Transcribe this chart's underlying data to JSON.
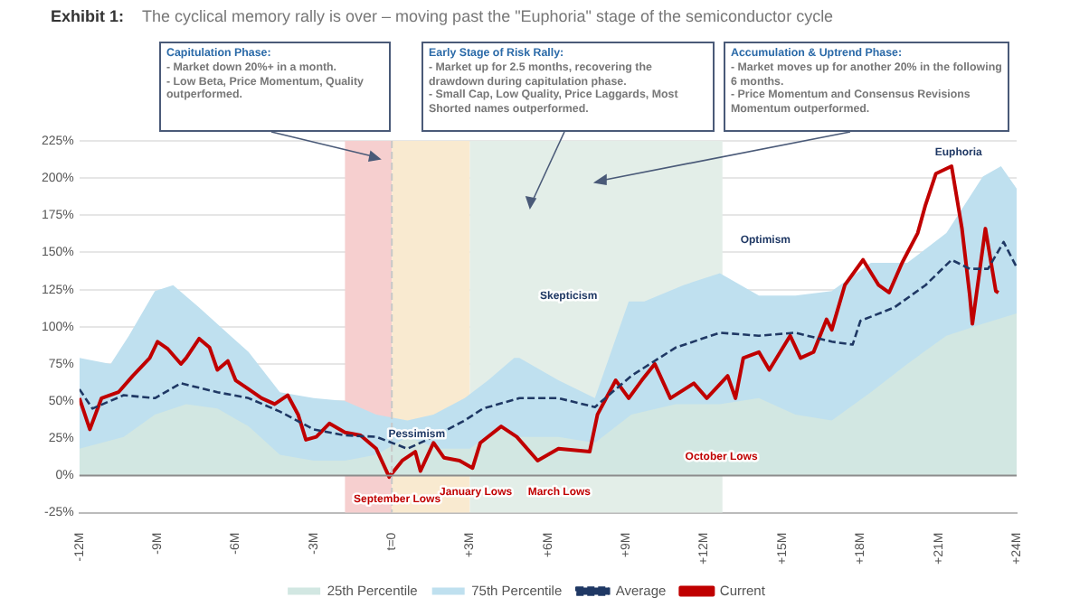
{
  "chart_data": {
    "type": "area",
    "title": "Exhibit 1:",
    "subtitle": "The cyclical memory rally is over – moving past the \"Euphoria\" stage of the semiconductor cycle",
    "xlim": [
      -12,
      24
    ],
    "xticks": [
      {
        "value": -12,
        "label": "-12M"
      },
      {
        "value": -9,
        "label": "-9M"
      },
      {
        "value": -6,
        "label": "-6M"
      },
      {
        "value": -3,
        "label": "-3M"
      },
      {
        "value": 0,
        "label": "t=0"
      },
      {
        "value": 3,
        "label": "+3M"
      },
      {
        "value": 6,
        "label": "+6M"
      },
      {
        "value": 9,
        "label": "+9M"
      },
      {
        "value": 12,
        "label": "+12M"
      },
      {
        "value": 15,
        "label": "+15M"
      },
      {
        "value": 18,
        "label": "+18M"
      },
      {
        "value": 21,
        "label": "+21M"
      },
      {
        "value": 24,
        "label": "+24M"
      }
    ],
    "ylim": [
      -25,
      225
    ],
    "yticks": [
      {
        "value": -25,
        "label": "-25%"
      },
      {
        "value": 0,
        "label": "0%"
      },
      {
        "value": 25,
        "label": "25%"
      },
      {
        "value": 50,
        "label": "50%"
      },
      {
        "value": 75,
        "label": "75%"
      },
      {
        "value": 100,
        "label": "100%"
      },
      {
        "value": 125,
        "label": "125%"
      },
      {
        "value": 150,
        "label": "150%"
      },
      {
        "value": 175,
        "label": "175%"
      },
      {
        "value": 200,
        "label": "200%"
      },
      {
        "value": 225,
        "label": "225%"
      }
    ],
    "grid": "y",
    "legend": "bottom",
    "marker": "none",
    "series": [
      {
        "name": "25th Percentile",
        "color": "#d2e7e2",
        "x": [
          -12,
          -10.3,
          -9.1,
          -7.9,
          -6.7,
          -5.5,
          -4.3,
          -3.0,
          -1.8,
          -0.6,
          0.6,
          1.8,
          3.0,
          4.2,
          4.9,
          6.4,
          7.8,
          9.2,
          10.9,
          12.6,
          14.1,
          15.5,
          16.9,
          18.4,
          19.8,
          21.3,
          22.7,
          24
        ],
        "values": [
          18,
          26,
          41,
          48,
          45,
          33,
          14,
          10,
          10,
          14,
          26,
          18,
          18,
          33,
          26,
          26,
          22,
          41,
          48,
          48,
          52,
          41,
          37,
          56,
          75,
          94,
          102,
          109
        ]
      },
      {
        "name": "75th Percentile",
        "color": "#bfe0ef",
        "x": [
          -12,
          -10.8,
          -10.1,
          -9.1,
          -8.4,
          -7.4,
          -6.2,
          -5.5,
          -4.3,
          -3.0,
          -1.8,
          -0.6,
          0.6,
          1.6,
          2.8,
          3.7,
          4.7,
          4.9,
          6.4,
          7.8,
          9.1,
          9.7,
          11.2,
          12.6,
          14.1,
          15.5,
          16.9,
          18.4,
          19.8,
          21.3,
          22.7,
          23.4,
          24
        ],
        "values": [
          79,
          75,
          94,
          124,
          128,
          113,
          94,
          83,
          56,
          52,
          50,
          41,
          37,
          41,
          52,
          64,
          79,
          79,
          64,
          52,
          117,
          117,
          128,
          136,
          121,
          121,
          124,
          143,
          143,
          163,
          201,
          208,
          193
        ]
      },
      {
        "name": "Average",
        "type": "line",
        "line_style": "dashed",
        "color": "#1f3864",
        "x": [
          -12,
          -11.5,
          -10.3,
          -9.1,
          -8.1,
          -6.7,
          -5.5,
          -4.3,
          -3.0,
          -1.8,
          -0.6,
          0.6,
          1.6,
          2.8,
          3.5,
          4.9,
          6.4,
          7.8,
          9.2,
          10.9,
          12.6,
          14.1,
          15.5,
          16.9,
          17.7,
          18.0,
          19.3,
          20.5,
          21.5,
          22.2,
          22.9,
          23.5,
          24
        ],
        "values": [
          58,
          45,
          54,
          52,
          62,
          56,
          52,
          43,
          31,
          27,
          26,
          18,
          26,
          37,
          45,
          52,
          52,
          46,
          67,
          86,
          96,
          94,
          96,
          90,
          88,
          104,
          113,
          128,
          145,
          139,
          139,
          157,
          140
        ]
      },
      {
        "name": "Current",
        "type": "line",
        "line_style": "solid",
        "color": "#c00000",
        "x": [
          -12,
          -11.6,
          -11.15,
          -10.5,
          -9.95,
          -9.3,
          -9,
          -8.6,
          -8.1,
          -7.9,
          -7.4,
          -7.0,
          -6.7,
          -6.3,
          -6.0,
          -5.5,
          -5.0,
          -4.5,
          -4.0,
          -3.6,
          -3.3,
          -2.9,
          -2.4,
          -1.8,
          -1.2,
          -0.6,
          -0.1,
          0.4,
          0.9,
          1.1,
          1.6,
          2.0,
          2.6,
          3.1,
          3.4,
          4.2,
          4.8,
          5.6,
          6.4,
          7.6,
          7.9,
          8.6,
          9.1,
          9.6,
          10.1,
          10.7,
          11.6,
          12.1,
          12.9,
          13.2,
          13.5,
          14.1,
          14.5,
          15.3,
          15.7,
          16.2,
          16.7,
          16.9,
          17.4,
          18.1,
          18.7,
          19.1,
          19.6,
          20.2,
          20.5,
          20.9,
          21.5,
          21.9,
          22.2,
          22.3,
          22.8,
          23.2,
          23.3
        ],
        "values": [
          52,
          31,
          52,
          56,
          67,
          79,
          90,
          85,
          75,
          79,
          92,
          86,
          71,
          77,
          64,
          58,
          52,
          48,
          54,
          41,
          24,
          26,
          35,
          29,
          27,
          18,
          -1,
          10,
          16,
          3,
          22,
          12,
          10,
          5,
          22,
          33,
          26,
          10,
          18,
          16,
          41,
          64,
          52,
          64,
          75,
          52,
          62,
          52,
          67,
          52,
          79,
          83,
          71,
          94,
          79,
          83,
          105,
          98,
          128,
          145,
          128,
          123,
          143,
          163,
          182,
          203,
          208,
          166,
          121,
          102,
          166,
          124,
          123
        ]
      }
    ],
    "bands": [
      {
        "axis": "x",
        "from": -1.8,
        "to": 0,
        "color": "#f6cfcf"
      },
      {
        "axis": "x",
        "from": 0,
        "to": 3,
        "color": "#f9ead0"
      },
      {
        "axis": "x",
        "from": 3,
        "to": 12.7,
        "color": "#e3eee8"
      }
    ],
    "ref_lines": [
      {
        "axis": "x",
        "value": 0,
        "color": "#c8c8c8",
        "line_style": "dashed"
      },
      {
        "axis": "y",
        "value": 0,
        "color": "#8c8c8c",
        "line_style": "solid"
      }
    ],
    "annotations": [
      "Capitulation Phase:\n- Market down 20%+ in a month.\n- Low Beta, Price Momentum, Quality outperformed.",
      "Early Stage of Risk Rally:\n- Market up for 2.5 months, recovering the drawdown during capitulation phase.\n- Small Cap, Low Quality, Price Laggards, Most Shorted names outperformed.",
      "Accumulation & Uptrend Phase:\n- Market moves up for another 20% in the following 6 months.\n- Price Momentum and Consensus Revisions Momentum outperformed.",
      "Pessimism",
      "September Lows",
      "January Lows",
      "March Lows",
      "October Lows",
      "Skepticism",
      "Optimism",
      "Euphoria"
    ]
  }
}
